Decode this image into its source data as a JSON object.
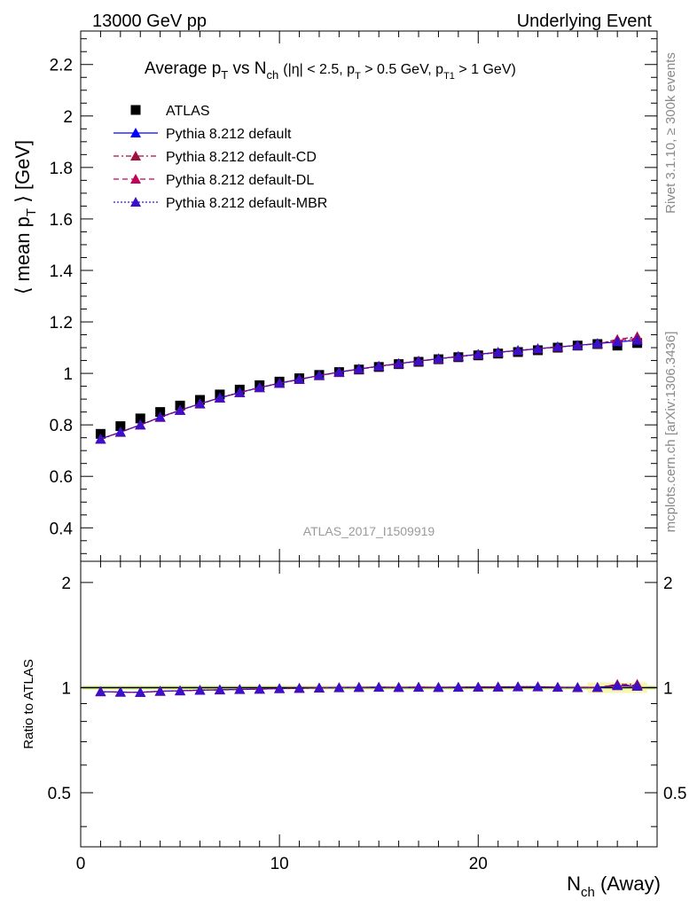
{
  "header": {
    "left": "13000 GeV pp",
    "right": "Underlying Event"
  },
  "side": {
    "rivet": "Rivet 3.1.10, ≥ 300k events",
    "mcplots": "mcplots.cern.ch [arXiv:1306.3436]"
  },
  "chart_data": {
    "type": "scatter",
    "title": "Average p_T vs N_ch (|η| < 2.5, p_T > 0.5 GeV, p_T1 > 1 GeV)",
    "title_parts": {
      "pre": "Average p",
      "sub1": "T",
      "mid": " vs N",
      "sub2": "ch",
      "cond": "(|η| < 2.5, p",
      "sub3": "T",
      "cond2": " > 0.5 GeV, p",
      "sub4": "T1",
      "cond3": " > 1 GeV)"
    },
    "analysis": "ATLAS_2017_I1509919",
    "ylabel": "⟨ mean p_T ⟩ [GeV]",
    "ylabel_parts": {
      "pre": "⟨ mean p",
      "sub": "T",
      "post": " ⟩ [GeV]"
    },
    "xlabel": "N_ch (Away)",
    "xlabel_parts": {
      "pre": "N",
      "sub": "ch",
      "post": " (Away)"
    },
    "ratio_ylabel": "Ratio to ATLAS",
    "xlim": [
      0,
      29
    ],
    "ylim": [
      0.27,
      2.33
    ],
    "ratio_ylim": [
      0.35,
      2.3
    ],
    "xticks": [
      0,
      10,
      20
    ],
    "xticks_labels": [
      "0",
      "10",
      "20"
    ],
    "yticks": [
      0.4,
      0.6,
      0.8,
      1.0,
      1.2,
      1.4,
      1.6,
      1.8,
      2.0,
      2.2
    ],
    "yticks_labels": [
      "0.4",
      "0.6",
      "0.8",
      "1",
      "1.2",
      "1.4",
      "1.6",
      "1.8",
      "2",
      "2.2"
    ],
    "ratio_yticks": [
      0.5,
      1,
      2
    ],
    "ratio_yticks_labels": [
      "0.5",
      "1",
      "2"
    ],
    "x": [
      1,
      2,
      3,
      4,
      5,
      6,
      7,
      8,
      9,
      10,
      11,
      12,
      13,
      14,
      15,
      16,
      17,
      18,
      19,
      20,
      21,
      22,
      23,
      24,
      25,
      26,
      27,
      28
    ],
    "series": [
      {
        "name": "ATLAS",
        "color": "#000000",
        "marker": "square",
        "line": "none",
        "values": [
          0.765,
          0.795,
          0.825,
          0.85,
          0.875,
          0.897,
          0.918,
          0.937,
          0.954,
          0.968,
          0.981,
          0.994,
          1.005,
          1.015,
          1.025,
          1.036,
          1.045,
          1.055,
          1.063,
          1.07,
          1.077,
          1.083,
          1.09,
          1.1,
          1.108,
          1.114,
          1.108,
          1.118
        ]
      },
      {
        "name": "Pythia 8.212 default",
        "color": "#0000ff",
        "marker": "triangle",
        "line": "solid",
        "values": [
          0.745,
          0.772,
          0.8,
          0.83,
          0.857,
          0.882,
          0.905,
          0.926,
          0.945,
          0.962,
          0.977,
          0.992,
          1.005,
          1.017,
          1.028,
          1.038,
          1.048,
          1.057,
          1.066,
          1.074,
          1.082,
          1.089,
          1.096,
          1.103,
          1.109,
          1.116,
          1.122,
          1.128
        ]
      },
      {
        "name": "Pythia 8.212 default-CD",
        "color": "#a0103c",
        "marker": "triangle",
        "line": "dashdot",
        "values": [
          0.744,
          0.771,
          0.799,
          0.829,
          0.856,
          0.881,
          0.904,
          0.925,
          0.944,
          0.961,
          0.976,
          0.991,
          1.004,
          1.016,
          1.027,
          1.037,
          1.047,
          1.056,
          1.065,
          1.073,
          1.081,
          1.088,
          1.095,
          1.102,
          1.108,
          1.115,
          1.132,
          1.143
        ]
      },
      {
        "name": "Pythia 8.212 default-DL",
        "color": "#c0005a",
        "marker": "triangle",
        "line": "dashed",
        "values": [
          0.745,
          0.772,
          0.8,
          0.83,
          0.857,
          0.882,
          0.905,
          0.926,
          0.945,
          0.962,
          0.977,
          0.992,
          1.005,
          1.017,
          1.028,
          1.038,
          1.048,
          1.057,
          1.066,
          1.074,
          1.082,
          1.089,
          1.096,
          1.103,
          1.109,
          1.116,
          1.128,
          1.136
        ]
      },
      {
        "name": "Pythia 8.212 default-MBR",
        "color": "#3a10c8",
        "marker": "triangle",
        "line": "dotted",
        "values": [
          0.745,
          0.772,
          0.8,
          0.83,
          0.857,
          0.882,
          0.905,
          0.926,
          0.945,
          0.962,
          0.977,
          0.992,
          1.005,
          1.017,
          1.028,
          1.038,
          1.048,
          1.057,
          1.066,
          1.074,
          1.082,
          1.089,
          1.096,
          1.103,
          1.109,
          1.116,
          1.124,
          1.13
        ]
      }
    ]
  }
}
